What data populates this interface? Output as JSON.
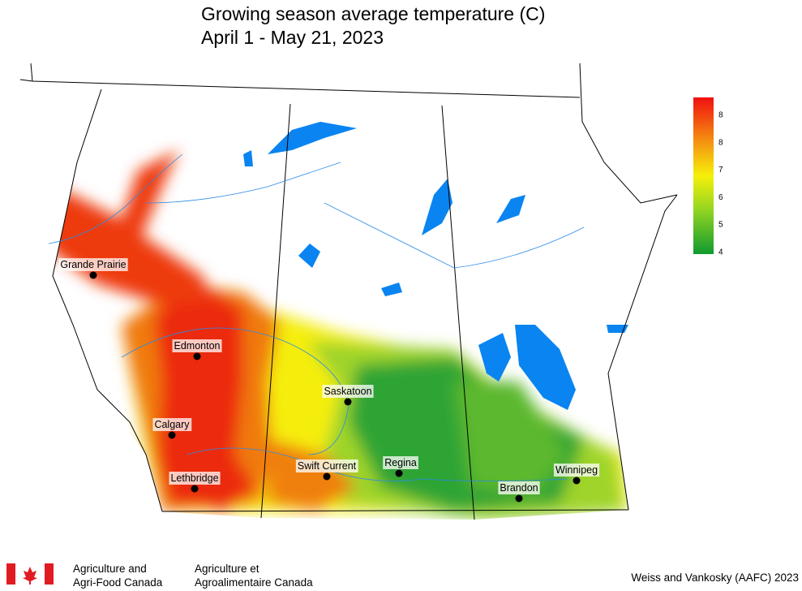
{
  "title": "Growing season average temperature (C)",
  "subtitle": "April 1 - May 21, 2023",
  "legend": {
    "labels": [
      8,
      8,
      7,
      6,
      5,
      4
    ]
  },
  "cities": [
    "Grande Prairie",
    "Edmonton",
    "Calgary",
    "Lethbridge",
    "Saskatoon",
    "Swift Current",
    "Regina",
    "Brandon",
    "Winnipeg"
  ],
  "footer": {
    "agency_en": [
      "Agriculture and",
      "Agri-Food Canada"
    ],
    "agency_fr": [
      "Agriculture et",
      "Agroalimentaire Canada"
    ],
    "credit": "Weiss and Vankosky (AAFC) 2023"
  }
}
